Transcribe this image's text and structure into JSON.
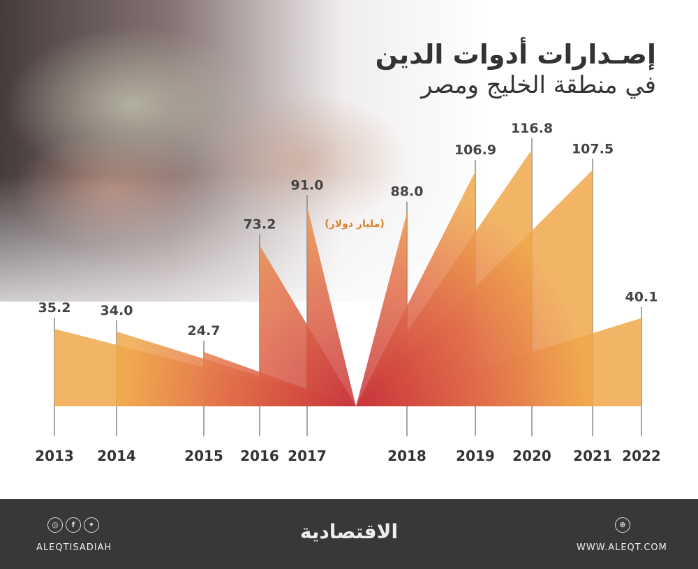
{
  "title": {
    "line1": "إصـدارات أدوات الدين",
    "line2": "في منطقة الخليج ومصر"
  },
  "chart_data": {
    "type": "area",
    "title": "إصـدارات أدوات الدين في منطقة الخليج ومصر",
    "unit_label": "(مليار دولار)",
    "categories": [
      "2013",
      "2014",
      "2015",
      "2016",
      "2017",
      "2018",
      "2019",
      "2020",
      "2021",
      "2022"
    ],
    "values": [
      35.2,
      34.0,
      24.7,
      73.2,
      91.0,
      88.0,
      106.9,
      116.8,
      107.5,
      40.1
    ],
    "value_labels": [
      "35.2",
      "34.0",
      "24.7",
      "73.2",
      "91.0",
      "88.0",
      "106.9",
      "116.8",
      "107.5",
      "40.1"
    ],
    "ylim": [
      0,
      116.8
    ],
    "colors": {
      "fill": "#f0a84a",
      "center": "#c8333a",
      "text": "#444444",
      "unit": "#d9822b"
    }
  },
  "footer": {
    "social_icons": [
      "instagram-icon",
      "facebook-icon",
      "twitter-icon"
    ],
    "handle": "ALEQTISADIAH",
    "logo": "الاقتصادية",
    "website": "WWW.ALEQT.COM"
  }
}
